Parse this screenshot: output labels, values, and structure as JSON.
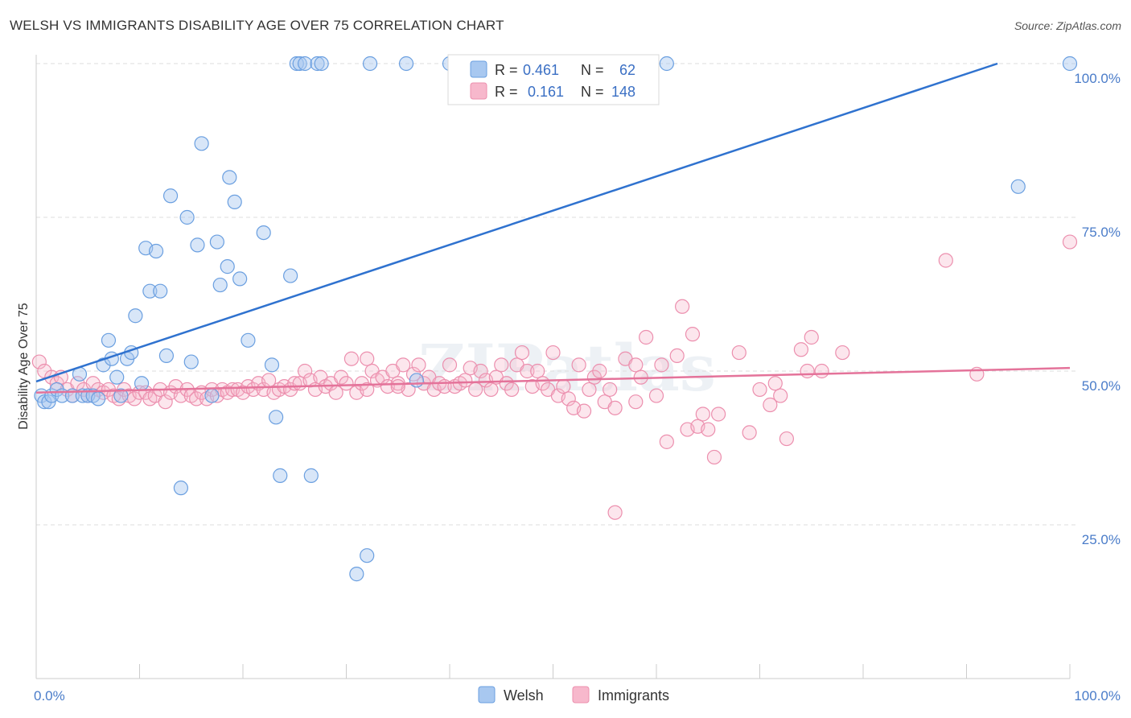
{
  "title": "WELSH VS IMMIGRANTS DISABILITY AGE OVER 75 CORRELATION CHART",
  "source": "Source: ZipAtlas.com",
  "watermark": "ZIPatlas",
  "colors": {
    "welsh_fill": "#a8c8f0",
    "welsh_stroke": "#6a9fe0",
    "welsh_line": "#2f72cf",
    "immigrants_fill": "#f7b8cc",
    "immigrants_stroke": "#ec8fae",
    "immigrants_line": "#e4739a",
    "grid": "#dddddd",
    "tick_label": "#4a7cc9"
  },
  "legend": {
    "welsh": {
      "r_label": "R =",
      "r_value": "0.461",
      "n_label": "N =",
      "n_value": "62"
    },
    "immigrants": {
      "r_label": "R =",
      "r_value": "0.161",
      "n_label": "N =",
      "n_value": "148"
    }
  },
  "bottom_legend": [
    "Welsh",
    "Immigrants"
  ],
  "chart_data": {
    "type": "scatter",
    "title": "WELSH VS IMMIGRANTS DISABILITY AGE OVER 75 CORRELATION CHART",
    "xlabel": "",
    "ylabel": "Disability Age Over 75",
    "xlim": [
      0,
      100
    ],
    "ylim": [
      0,
      100
    ],
    "x_tick_labels": [
      "0.0%",
      "100.0%"
    ],
    "y_tick_labels": [
      "25.0%",
      "50.0%",
      "75.0%",
      "100.0%"
    ],
    "y_ticks": [
      25,
      50,
      75,
      100
    ],
    "grid": true,
    "legend_position": "top-center",
    "series": [
      {
        "name": "Welsh",
        "r": 0.461,
        "n": 62,
        "trend": {
          "x": [
            0,
            93
          ],
          "y": [
            48.3,
            100
          ]
        },
        "points": [
          [
            0.5,
            46
          ],
          [
            0.8,
            45
          ],
          [
            1.2,
            45
          ],
          [
            1.5,
            46
          ],
          [
            2,
            47
          ],
          [
            2.5,
            46
          ],
          [
            3.5,
            46
          ],
          [
            4.2,
            49.5
          ],
          [
            4.5,
            46
          ],
          [
            5,
            46
          ],
          [
            5.5,
            46
          ],
          [
            6,
            45.5
          ],
          [
            6.5,
            51
          ],
          [
            7,
            55
          ],
          [
            7.3,
            52
          ],
          [
            7.8,
            49
          ],
          [
            8.2,
            46
          ],
          [
            8.8,
            52
          ],
          [
            9.2,
            53
          ],
          [
            9.6,
            59
          ],
          [
            10.2,
            48
          ],
          [
            10.6,
            70
          ],
          [
            11,
            63
          ],
          [
            11.6,
            69.5
          ],
          [
            12,
            63
          ],
          [
            12.6,
            52.5
          ],
          [
            13,
            78.5
          ],
          [
            14,
            31
          ],
          [
            14.6,
            75
          ],
          [
            15,
            51.5
          ],
          [
            15.6,
            70.5
          ],
          [
            16,
            87
          ],
          [
            17,
            46
          ],
          [
            17.5,
            71
          ],
          [
            17.8,
            64
          ],
          [
            18.5,
            67
          ],
          [
            18.7,
            81.5
          ],
          [
            19.2,
            77.5
          ],
          [
            19.7,
            65
          ],
          [
            20.5,
            55
          ],
          [
            22,
            72.5
          ],
          [
            22.8,
            51
          ],
          [
            23.2,
            42.5
          ],
          [
            23.6,
            33
          ],
          [
            24.6,
            65.5
          ],
          [
            25.2,
            100
          ],
          [
            25.5,
            100
          ],
          [
            26,
            100
          ],
          [
            26.6,
            33
          ],
          [
            27.2,
            100
          ],
          [
            27.6,
            100
          ],
          [
            31,
            17
          ],
          [
            32,
            20
          ],
          [
            32.3,
            100
          ],
          [
            35.8,
            100
          ],
          [
            36.8,
            48.5
          ],
          [
            40,
            100
          ],
          [
            52.5,
            100
          ],
          [
            61,
            100
          ],
          [
            95,
            80
          ],
          [
            100,
            100
          ]
        ]
      },
      {
        "name": "Immigrants",
        "r": 0.161,
        "n": 148,
        "trend": {
          "x": [
            0,
            100
          ],
          "y": [
            46.5,
            50.5
          ]
        },
        "points": [
          [
            0.3,
            51.5
          ],
          [
            0.8,
            50
          ],
          [
            1.5,
            49
          ],
          [
            2,
            48
          ],
          [
            2.4,
            49
          ],
          [
            3,
            47
          ],
          [
            3.5,
            46
          ],
          [
            4,
            48
          ],
          [
            4.6,
            47
          ],
          [
            5,
            46
          ],
          [
            5.5,
            48
          ],
          [
            6,
            47
          ],
          [
            6.5,
            46.5
          ],
          [
            7,
            47
          ],
          [
            7.5,
            46
          ],
          [
            8,
            45.5
          ],
          [
            8.5,
            47
          ],
          [
            9,
            46
          ],
          [
            9.5,
            45.5
          ],
          [
            10,
            46.5
          ],
          [
            10.6,
            46.5
          ],
          [
            11,
            45.5
          ],
          [
            11.5,
            46
          ],
          [
            12,
            47
          ],
          [
            12.5,
            45
          ],
          [
            13,
            46.5
          ],
          [
            13.5,
            47.5
          ],
          [
            14,
            46
          ],
          [
            14.6,
            47
          ],
          [
            15,
            46
          ],
          [
            15.5,
            45.5
          ],
          [
            16,
            46.5
          ],
          [
            16.5,
            45.5
          ],
          [
            17,
            47
          ],
          [
            17.5,
            46
          ],
          [
            18,
            47
          ],
          [
            18.5,
            46.5
          ],
          [
            19,
            47
          ],
          [
            19.5,
            47
          ],
          [
            20,
            46.5
          ],
          [
            20.5,
            47.5
          ],
          [
            21,
            47
          ],
          [
            21.5,
            48
          ],
          [
            22,
            47
          ],
          [
            22.5,
            48.5
          ],
          [
            23,
            46.5
          ],
          [
            23.5,
            47
          ],
          [
            24,
            47.5
          ],
          [
            24.6,
            47
          ],
          [
            25,
            48
          ],
          [
            25.5,
            48
          ],
          [
            26,
            50
          ],
          [
            26.5,
            48.5
          ],
          [
            27,
            47
          ],
          [
            27.5,
            49
          ],
          [
            28,
            47.5
          ],
          [
            28.5,
            48
          ],
          [
            29,
            46.5
          ],
          [
            29.5,
            49
          ],
          [
            30,
            48
          ],
          [
            30.5,
            52
          ],
          [
            31,
            46.5
          ],
          [
            31.5,
            48
          ],
          [
            32,
            47
          ],
          [
            32.5,
            50
          ],
          [
            33,
            48.5
          ],
          [
            33.5,
            49
          ],
          [
            34,
            47.5
          ],
          [
            34.5,
            50
          ],
          [
            35,
            48
          ],
          [
            35.5,
            51
          ],
          [
            36,
            47
          ],
          [
            36.5,
            49.5
          ],
          [
            37,
            51
          ],
          [
            37.5,
            48
          ],
          [
            38,
            49
          ],
          [
            38.5,
            47
          ],
          [
            39,
            48
          ],
          [
            39.5,
            47.5
          ],
          [
            40,
            51
          ],
          [
            40.5,
            47.5
          ],
          [
            41,
            48
          ],
          [
            41.5,
            48.5
          ],
          [
            42,
            50.5
          ],
          [
            42.5,
            47
          ],
          [
            43,
            50
          ],
          [
            43.5,
            48.5
          ],
          [
            44,
            47
          ],
          [
            44.5,
            49
          ],
          [
            45,
            51
          ],
          [
            45.5,
            48
          ],
          [
            46,
            47
          ],
          [
            46.5,
            51
          ],
          [
            47,
            53
          ],
          [
            47.5,
            50
          ],
          [
            48,
            47.5
          ],
          [
            48.5,
            50
          ],
          [
            49,
            48
          ],
          [
            49.5,
            47
          ],
          [
            50,
            53
          ],
          [
            50.5,
            46
          ],
          [
            51,
            47.5
          ],
          [
            51.5,
            45.5
          ],
          [
            52,
            44
          ],
          [
            52.5,
            51
          ],
          [
            53,
            43.5
          ],
          [
            53.5,
            47
          ],
          [
            54,
            49
          ],
          [
            54.5,
            50
          ],
          [
            55,
            45
          ],
          [
            55.5,
            47
          ],
          [
            56,
            44
          ],
          [
            57,
            52
          ],
          [
            58,
            51
          ],
          [
            58.5,
            49
          ],
          [
            59,
            55.5
          ],
          [
            60,
            46
          ],
          [
            60.5,
            51
          ],
          [
            61,
            38.5
          ],
          [
            62,
            52.5
          ],
          [
            62.5,
            60.5
          ],
          [
            63,
            40.5
          ],
          [
            63.5,
            56
          ],
          [
            64,
            41
          ],
          [
            64.5,
            43
          ],
          [
            65,
            40.5
          ],
          [
            65.6,
            36
          ],
          [
            66,
            43
          ],
          [
            68,
            53
          ],
          [
            69,
            40
          ],
          [
            70,
            47
          ],
          [
            71,
            44.5
          ],
          [
            71.5,
            48
          ],
          [
            72,
            46
          ],
          [
            72.6,
            39
          ],
          [
            74,
            53.5
          ],
          [
            74.6,
            50
          ],
          [
            75,
            55.5
          ],
          [
            76,
            50
          ],
          [
            78,
            53
          ],
          [
            88,
            68
          ],
          [
            91,
            49.5
          ],
          [
            100,
            71
          ],
          [
            58,
            45
          ],
          [
            32,
            52
          ],
          [
            35,
            47.5
          ],
          [
            56,
            27
          ]
        ]
      }
    ]
  }
}
